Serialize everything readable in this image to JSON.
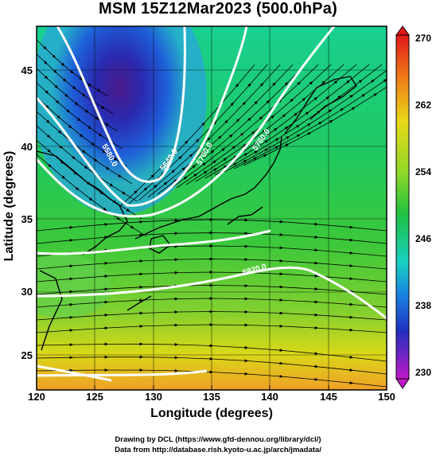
{
  "title": "MSM 15Z12Mar2023 (500.0hPa)",
  "axes": {
    "x_label": "Longitude (degrees)",
    "y_label": "Latitude  (degrees)",
    "x_ticks": [
      "120",
      "125",
      "130",
      "135",
      "140",
      "145",
      "150"
    ],
    "y_ticks": [
      "25",
      "30",
      "35",
      "40",
      "45"
    ]
  },
  "colorbar": {
    "labels": [
      "270",
      "262",
      "254",
      "246",
      "238",
      "230"
    ],
    "range": [
      230,
      270
    ]
  },
  "contours": {
    "labels": [
      "5580.0",
      "5640.0",
      "5700.0",
      "5760.0",
      "5820.0"
    ]
  },
  "credits": {
    "line1": "Drawing by DCL (https://www.gfd-dennou.org/library/dcl/)",
    "line2": "Data from http://database.rish.kyoto-u.ac.jp/arch/jmadata/"
  },
  "colors": {
    "cold": "#2a1a8a",
    "mid": "#2fc43a",
    "warm": "#f0a020",
    "contour": "#ffffff"
  }
}
